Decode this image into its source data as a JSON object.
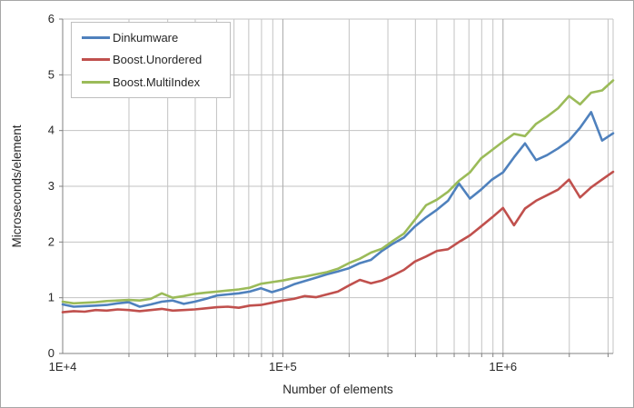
{
  "figure": {
    "y_axis_title": "Microseconds/element",
    "x_axis_title": "Number of elements",
    "y_tick_labels": [
      "0",
      "1",
      "2",
      "3",
      "4",
      "5",
      "6"
    ],
    "x_major_tick_labels": [
      "1E+4",
      "1E+5",
      "1E+6"
    ]
  },
  "colors": {
    "series_blue": "#4F81BD",
    "series_red": "#C0504D",
    "series_green": "#9BBB59",
    "grid_minor": "#c3c3c3",
    "grid_major": "#a8a8a8",
    "axis_line": "#808080",
    "tick_text": "#262626",
    "axis_title_text": "#262626",
    "legend_border": "#bfbfbf",
    "figure_border": "#a6a6a6"
  },
  "chart_data": {
    "type": "line",
    "x_scale": "log",
    "x_range": [
      10000,
      3162278
    ],
    "y_range": [
      0,
      6
    ],
    "grid": true,
    "legend_position": "top-left-inside",
    "x_major_ticks": [
      10000,
      100000,
      1000000
    ],
    "y_ticks": [
      0,
      1,
      2,
      3,
      4,
      5,
      6
    ],
    "title": "",
    "xlabel": "Number of elements",
    "ylabel": "Microseconds/element",
    "x": [
      10000,
      11220,
      12589,
      14125,
      15849,
      17783,
      19953,
      22387,
      25119,
      28184,
      31623,
      35481,
      39811,
      44668,
      50119,
      56234,
      63096,
      70795,
      79433,
      89125,
      100000,
      112202,
      125893,
      141254,
      158489,
      177828,
      199526,
      223872,
      251189,
      281838,
      316228,
      354813,
      398107,
      446684,
      501187,
      562341,
      630957,
      707946,
      794328,
      891251,
      1000000,
      1122018,
      1258925,
      1412538,
      1584893,
      1778279,
      1995262,
      2238721,
      2511886,
      2818383,
      3162278
    ],
    "series": [
      {
        "name": "Dinkumware",
        "color": "#4F81BD",
        "values": [
          0.88,
          0.84,
          0.85,
          0.86,
          0.87,
          0.9,
          0.92,
          0.84,
          0.88,
          0.93,
          0.95,
          0.89,
          0.93,
          0.98,
          1.04,
          1.06,
          1.08,
          1.11,
          1.17,
          1.1,
          1.16,
          1.24,
          1.3,
          1.36,
          1.42,
          1.47,
          1.53,
          1.62,
          1.68,
          1.84,
          1.97,
          2.08,
          2.28,
          2.44,
          2.58,
          2.74,
          3.05,
          2.78,
          2.94,
          3.12,
          3.25,
          3.52,
          3.77,
          3.47,
          3.56,
          3.68,
          3.82,
          4.05,
          4.33,
          3.82,
          3.95
        ]
      },
      {
        "name": "Boost.Unordered",
        "color": "#C0504D",
        "values": [
          0.74,
          0.76,
          0.75,
          0.78,
          0.77,
          0.79,
          0.78,
          0.76,
          0.78,
          0.8,
          0.77,
          0.78,
          0.79,
          0.81,
          0.83,
          0.84,
          0.82,
          0.86,
          0.87,
          0.91,
          0.95,
          0.98,
          1.03,
          1.01,
          1.06,
          1.11,
          1.22,
          1.32,
          1.26,
          1.31,
          1.4,
          1.5,
          1.65,
          1.74,
          1.84,
          1.87,
          2.0,
          2.12,
          2.28,
          2.44,
          2.61,
          2.3,
          2.6,
          2.74,
          2.84,
          2.94,
          3.12,
          2.8,
          2.98,
          3.12,
          3.26
        ]
      },
      {
        "name": "Boost.MultiIndex",
        "color": "#9BBB59",
        "values": [
          0.93,
          0.9,
          0.91,
          0.92,
          0.94,
          0.95,
          0.96,
          0.95,
          0.98,
          1.08,
          1.0,
          1.03,
          1.07,
          1.09,
          1.11,
          1.13,
          1.15,
          1.18,
          1.25,
          1.28,
          1.31,
          1.35,
          1.38,
          1.42,
          1.46,
          1.52,
          1.62,
          1.7,
          1.81,
          1.88,
          2.02,
          2.15,
          2.4,
          2.66,
          2.76,
          2.9,
          3.1,
          3.25,
          3.5,
          3.65,
          3.8,
          3.94,
          3.9,
          4.12,
          4.25,
          4.4,
          4.62,
          4.47,
          4.68,
          4.72,
          4.9
        ]
      }
    ]
  }
}
